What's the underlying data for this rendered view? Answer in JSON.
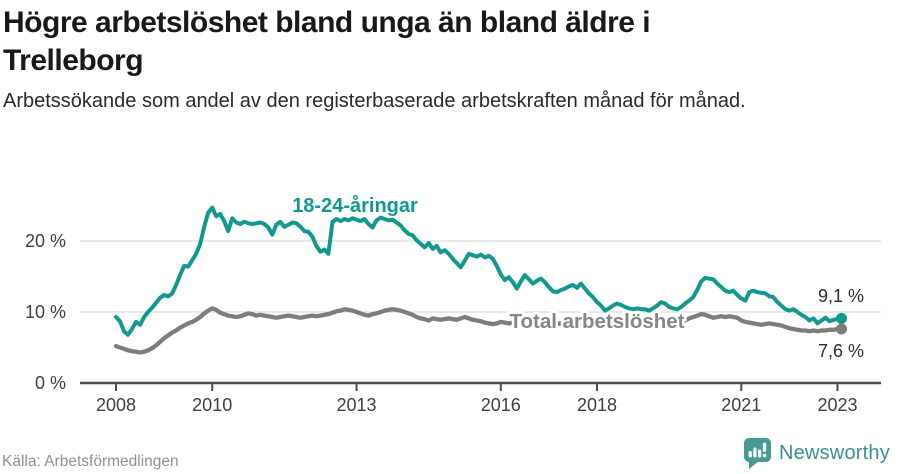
{
  "header": {
    "title": "Högre arbetslöshet bland unga än bland äldre i Trelleborg",
    "subtitle": "Arbetssökande som andel av den registerbaserade arbetskraften månad för månad."
  },
  "footer": {
    "source": "Källa: Arbetsförmedlingen",
    "brand": "Newsworthy",
    "brand_icon": "newsworthy-speech-bubble-barchart-icon",
    "brand_color": "#479a93"
  },
  "colors": {
    "accent_teal": "#12998e",
    "series_gray": "#7d7d7d",
    "axis": "#4c4c4c",
    "gridline": "#dcdcdc",
    "value_label": "#2d2d2d",
    "total_label_gray": "#85868a"
  },
  "chart_data": {
    "type": "line",
    "title": "Högre arbetslöshet bland unga än bland äldre i Trelleborg",
    "subtitle": "Arbetssökande som andel av den registerbaserade arbetskraften månad för månad.",
    "source": "Källa: Arbetsförmedlingen",
    "x_start_year": 2008,
    "x_step_months": 1,
    "x_end": "2023-02",
    "x_ticks": [
      2008,
      2010,
      2013,
      2016,
      2018,
      2021,
      2023
    ],
    "y_ticks": [
      {
        "value": 0,
        "label": "0 %"
      },
      {
        "value": 10,
        "label": "10 %"
      },
      {
        "value": 20,
        "label": "20 %"
      }
    ],
    "ylim": [
      0,
      26
    ],
    "grid": true,
    "legend_position": "inline-labels",
    "series": [
      {
        "name": "18-24-åringar",
        "color": "#12998e",
        "end_label": "9,1 %",
        "end_value": 9.1,
        "values": [
          9.3,
          8.7,
          7.3,
          6.8,
          7.6,
          8.6,
          8.2,
          9.3,
          10.0,
          10.6,
          11.3,
          12.0,
          12.4,
          12.2,
          12.6,
          13.8,
          15.2,
          16.5,
          16.4,
          17.3,
          18.2,
          19.6,
          22.0,
          24.0,
          24.7,
          23.5,
          23.8,
          22.8,
          21.4,
          23.2,
          22.6,
          22.4,
          22.7,
          22.5,
          22.4,
          22.5,
          22.6,
          22.4,
          21.9,
          20.9,
          22.3,
          22.7,
          22.0,
          22.3,
          22.6,
          22.5,
          22.0,
          21.4,
          21.3,
          20.6,
          19.3,
          18.5,
          18.8,
          18.2,
          22.7,
          23.1,
          22.8,
          23.1,
          22.9,
          23.2,
          23.0,
          22.8,
          23.1,
          22.4,
          21.9,
          22.9,
          23.3,
          23.1,
          22.9,
          23.0,
          22.6,
          22.2,
          21.5,
          21.0,
          20.8,
          20.1,
          19.6,
          19.1,
          19.7,
          18.9,
          19.3,
          18.4,
          18.7,
          18.2,
          17.5,
          16.9,
          16.3,
          17.2,
          18.2,
          18.0,
          17.8,
          18.1,
          17.7,
          17.9,
          17.5,
          16.5,
          15.3,
          14.5,
          14.9,
          14.2,
          13.3,
          14.3,
          15.2,
          14.6,
          14.0,
          14.4,
          14.7,
          14.2,
          13.5,
          12.9,
          12.8,
          13.1,
          13.3,
          13.6,
          13.8,
          13.4,
          14.0,
          13.3,
          12.6,
          12.1,
          11.4,
          10.9,
          10.2,
          10.5,
          10.9,
          11.2,
          11.0,
          10.7,
          10.5,
          10.4,
          10.5,
          10.4,
          10.4,
          10.2,
          10.5,
          10.9,
          11.4,
          11.2,
          10.7,
          10.5,
          10.4,
          10.7,
          11.2,
          11.6,
          12.1,
          13.1,
          14.3,
          14.8,
          14.7,
          14.6,
          14.0,
          13.5,
          13.0,
          12.8,
          13.0,
          12.4,
          11.9,
          11.6,
          12.8,
          13.0,
          12.8,
          12.7,
          12.6,
          12.2,
          12.1,
          11.4,
          10.9,
          10.4,
          10.2,
          10.4,
          10.0,
          9.6,
          9.3,
          8.8,
          9.1,
          8.4,
          8.8,
          9.2,
          8.7,
          8.9,
          9.0,
          9.1
        ]
      },
      {
        "name": "Total arbetslöshet",
        "color": "#7d7d7d",
        "end_label": "7,6 %",
        "end_value": 7.6,
        "values": [
          5.2,
          5.0,
          4.8,
          4.6,
          4.5,
          4.4,
          4.3,
          4.4,
          4.6,
          4.9,
          5.3,
          5.8,
          6.3,
          6.7,
          7.1,
          7.4,
          7.8,
          8.1,
          8.4,
          8.6,
          8.9,
          9.3,
          9.8,
          10.2,
          10.5,
          10.3,
          9.9,
          9.7,
          9.5,
          9.4,
          9.3,
          9.4,
          9.6,
          9.8,
          9.7,
          9.5,
          9.6,
          9.5,
          9.4,
          9.3,
          9.2,
          9.3,
          9.4,
          9.5,
          9.4,
          9.3,
          9.2,
          9.3,
          9.4,
          9.5,
          9.4,
          9.5,
          9.6,
          9.7,
          9.9,
          10.1,
          10.2,
          10.4,
          10.3,
          10.2,
          10.0,
          9.8,
          9.6,
          9.5,
          9.7,
          9.8,
          10.0,
          10.2,
          10.3,
          10.4,
          10.3,
          10.2,
          10.0,
          9.8,
          9.6,
          9.3,
          9.1,
          9.0,
          8.8,
          9.1,
          9.0,
          8.9,
          9.0,
          9.1,
          9.0,
          8.9,
          9.1,
          9.3,
          9.1,
          8.9,
          8.8,
          8.7,
          8.5,
          8.4,
          8.3,
          8.4,
          8.6,
          8.5,
          8.4,
          8.5,
          8.6,
          8.5,
          8.4,
          8.5,
          8.6,
          8.5,
          8.4,
          8.4,
          8.5,
          8.4,
          8.3,
          8.4,
          8.5,
          8.6,
          8.5,
          8.4,
          8.3,
          8.3,
          8.2,
          8.2,
          8.3,
          8.2,
          8.1,
          8.2,
          8.3,
          8.4,
          8.3,
          8.2,
          8.3,
          8.4,
          8.3,
          8.3,
          8.4,
          8.5,
          8.4,
          8.3,
          8.4,
          8.5,
          8.4,
          8.3,
          8.4,
          8.6,
          8.8,
          9.1,
          9.3,
          9.5,
          9.7,
          9.6,
          9.4,
          9.2,
          9.3,
          9.4,
          9.3,
          9.4,
          9.3,
          9.2,
          8.8,
          8.6,
          8.5,
          8.4,
          8.3,
          8.2,
          8.3,
          8.4,
          8.3,
          8.2,
          8.1,
          7.9,
          7.7,
          7.6,
          7.5,
          7.4,
          7.4,
          7.3,
          7.4,
          7.3,
          7.4,
          7.4,
          7.5,
          7.5,
          7.6,
          7.6
        ]
      }
    ]
  }
}
